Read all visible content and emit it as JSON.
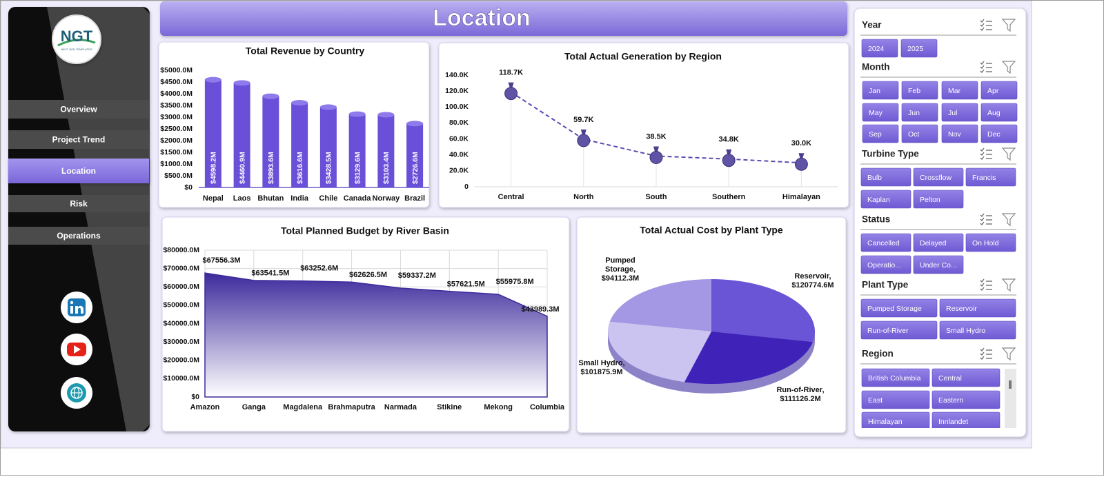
{
  "header": {
    "title": "Location"
  },
  "logo": {
    "text": "NGT",
    "tagline": "NEXT GEN TEMPLATES"
  },
  "nav": {
    "items": [
      "Overview",
      "Project Trend",
      "Location",
      "Risk",
      "Operations"
    ],
    "active": 2
  },
  "chart_data": [
    {
      "type": "bar",
      "title": "Total Revenue by Country",
      "categories": [
        "Nepal",
        "Laos",
        "Bhutan",
        "India",
        "Chile",
        "Canada",
        "Norway",
        "Brazil"
      ],
      "values": [
        4598.2,
        4460.9,
        3893.6,
        3616.6,
        3428.5,
        3129.6,
        3103.4,
        2726.6
      ],
      "value_labels": [
        "$4598.2M",
        "$4460.9M",
        "$3893.6M",
        "$3616.6M",
        "$3428.5M",
        "$3129.6M",
        "$3103.4M",
        "$2726.6M"
      ],
      "color": "#6a4fd8",
      "ylim": [
        0,
        5000
      ],
      "yticks": [
        {
          "value": 0,
          "label": "$0"
        },
        {
          "value": 500,
          "label": "$500.0M"
        },
        {
          "value": 1000,
          "label": "$1000.0M"
        },
        {
          "value": 1500,
          "label": "$1500.0M"
        },
        {
          "value": 2000,
          "label": "$2000.0M"
        },
        {
          "value": 2500,
          "label": "$2500.0M"
        },
        {
          "value": 3000,
          "label": "$3000.0M"
        },
        {
          "value": 3500,
          "label": "$3500.0M"
        },
        {
          "value": 4000,
          "label": "$4000.0M"
        },
        {
          "value": 4500,
          "label": "$4500.0M"
        },
        {
          "value": 5000,
          "label": "$5000.0M"
        }
      ]
    },
    {
      "type": "line",
      "title": "Total Actual Generation by Region",
      "categories": [
        "Central",
        "North",
        "South",
        "Southern",
        "Himalayan"
      ],
      "values": [
        118700,
        59700,
        38500,
        34800,
        30000
      ],
      "value_labels": [
        "118.7K",
        "59.7K",
        "38.5K",
        "34.8K",
        "30.0K"
      ],
      "color": "#5a4bb0",
      "ylim": [
        0,
        140000
      ],
      "yticks": [
        0,
        {
          "value": 20000,
          "label": "20.0K"
        },
        {
          "value": 40000,
          "label": "40.0K"
        },
        {
          "value": 60000,
          "label": "60.0K"
        },
        {
          "value": 80000,
          "label": "80.0K"
        },
        {
          "value": 100000,
          "label": "100.0K"
        },
        {
          "value": 120000,
          "label": "120.0K"
        },
        {
          "value": 140000,
          "label": "140.0K"
        }
      ]
    },
    {
      "type": "area",
      "title": "Total Planned Budget by River Basin",
      "categories": [
        "Amazon",
        "Ganga",
        "Magdalena",
        "Brahmaputra",
        "Narmada",
        "Stikine",
        "Mekong",
        "Columbia"
      ],
      "values": [
        67556.3,
        63541.5,
        63252.6,
        62626.5,
        59337.2,
        57621.5,
        55975.8,
        43989.3
      ],
      "value_labels": [
        "$67556.3M",
        "$63541.5M",
        "$63252.6M",
        "$62626.5M",
        "$59337.2M",
        "$57621.5M",
        "$55975.8M",
        "$43989.3M"
      ],
      "color": "#3d2a9c",
      "grid": true,
      "ylim": [
        0,
        80000
      ],
      "yticks": [
        {
          "value": 0,
          "label": "$0"
        },
        {
          "value": 10000,
          "label": "$10000.0M"
        },
        {
          "value": 20000,
          "label": "$20000.0M"
        },
        {
          "value": 30000,
          "label": "$30000.0M"
        },
        {
          "value": 40000,
          "label": "$40000.0M"
        },
        {
          "value": 50000,
          "label": "$50000.0M"
        },
        {
          "value": 60000,
          "label": "$60000.0M"
        },
        {
          "value": 70000,
          "label": "$70000.0M"
        },
        {
          "value": 80000,
          "label": "$80000.0M"
        }
      ]
    },
    {
      "type": "pie",
      "title": "Total Actual Cost by Plant Type",
      "values": [
        120774.6,
        111126.2,
        101875.9,
        94112.3
      ],
      "value_labels": [
        "Reservoir, $120774.6M",
        "Run-of-River, $111126.2M",
        "Small Hydro, $101875.9M",
        "Pumped Storage, $94112.3M"
      ],
      "colors": [
        "#6a55d6",
        "#3f22b8",
        "#cbc3f0",
        "#a497e4"
      ]
    }
  ],
  "slicers": [
    {
      "title": "Year",
      "items": [
        "2024",
        "2025"
      ]
    },
    {
      "title": "Month",
      "items": [
        "Jan",
        "Feb",
        "Mar",
        "Apr",
        "May",
        "Jun",
        "Jul",
        "Aug",
        "Sep",
        "Oct",
        "Nov",
        "Dec"
      ]
    },
    {
      "title": "Turbine Type",
      "items": [
        "Bulb",
        "Crossflow",
        "Francis",
        "Kaplan",
        "Pelton"
      ]
    },
    {
      "title": "Status",
      "items": [
        "Cancelled",
        "Delayed",
        "On Hold",
        "Operatio...",
        "Under Co..."
      ]
    },
    {
      "title": "Plant Type",
      "items": [
        "Pumped Storage",
        "Reservoir",
        "Run-of-River",
        "Small Hydro"
      ]
    },
    {
      "title": "Region",
      "items": [
        "British Columbia",
        "Central",
        "East",
        "Eastern",
        "Himalayan",
        "Innlandet"
      ]
    }
  ]
}
